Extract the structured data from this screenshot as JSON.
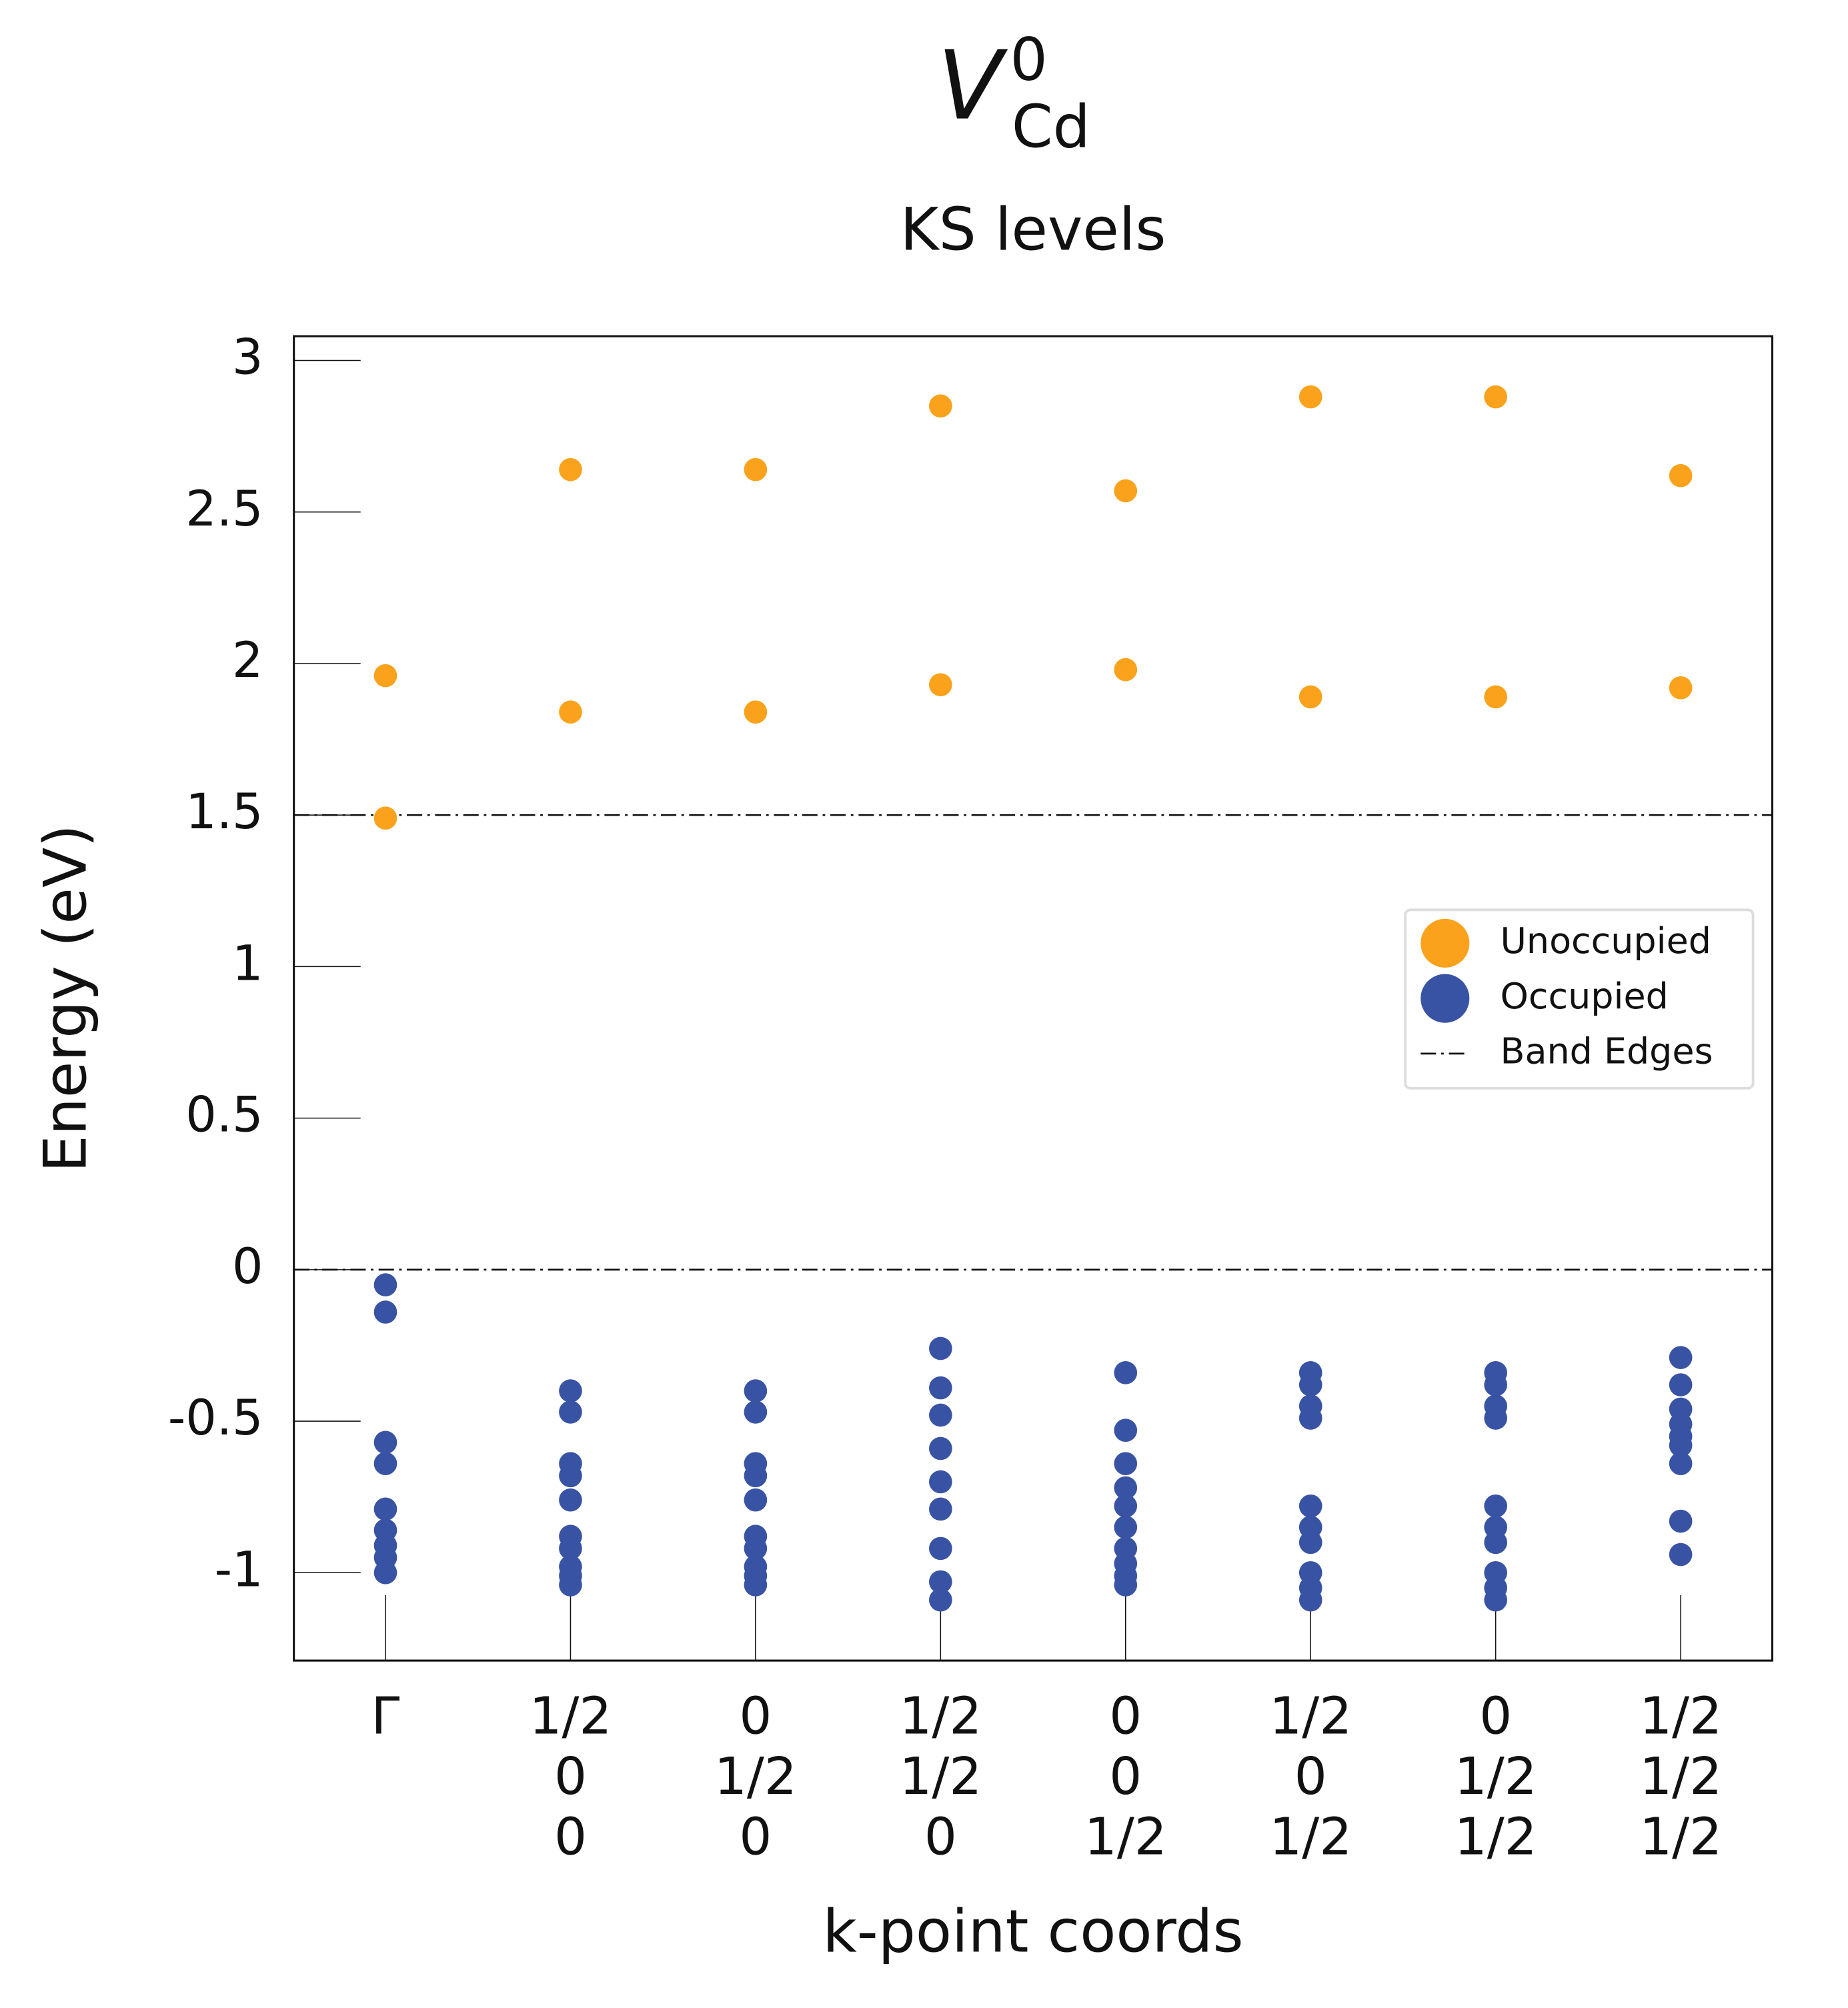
{
  "chart_data": {
    "type": "scatter",
    "title": {
      "main": "V",
      "superscript": "0",
      "subscript": "Cd"
    },
    "subtitle": "KS levels",
    "ylabel": "Energy (eV)",
    "xlabel": "k-point coords",
    "categories": [
      [
        "Γ"
      ],
      [
        "1/2",
        "0",
        "0"
      ],
      [
        "0",
        "1/2",
        "0"
      ],
      [
        "1/2",
        "1/2",
        "0"
      ],
      [
        "0",
        "0",
        "1/2"
      ],
      [
        "1/2",
        "0",
        "1/2"
      ],
      [
        "0",
        "1/2",
        "1/2"
      ],
      [
        "1/2",
        "1/2",
        "1/2"
      ]
    ],
    "series": [
      {
        "name": "Unoccupied",
        "color": "#faa21b",
        "values": [
          [
            1.96,
            1.49
          ],
          [
            2.64,
            1.84
          ],
          [
            2.64,
            1.84
          ],
          [
            2.85,
            1.93
          ],
          [
            2.57,
            1.98
          ],
          [
            2.88,
            1.89
          ],
          [
            2.88,
            1.89
          ],
          [
            2.62,
            1.92
          ]
        ]
      },
      {
        "name": "Occupied",
        "color": "#3953a4",
        "values": [
          [
            -0.05,
            -0.14,
            -0.57,
            -0.64,
            -0.79,
            -0.86,
            -0.91,
            -0.95,
            -1.0
          ],
          [
            -0.4,
            -0.47,
            -0.64,
            -0.68,
            -0.76,
            -0.88,
            -0.92,
            -0.98,
            -1.01,
            -1.04
          ],
          [
            -0.4,
            -0.47,
            -0.64,
            -0.68,
            -0.76,
            -0.88,
            -0.92,
            -0.98,
            -1.01,
            -1.04
          ],
          [
            -0.26,
            -0.39,
            -0.48,
            -0.59,
            -0.7,
            -0.79,
            -0.92,
            -1.03,
            -1.09
          ],
          [
            -0.34,
            -0.53,
            -0.64,
            -0.72,
            -0.78,
            -0.85,
            -0.92,
            -0.97,
            -1.01,
            -1.04
          ],
          [
            -0.34,
            -0.38,
            -0.45,
            -0.49,
            -0.78,
            -0.85,
            -0.9,
            -1.0,
            -1.05,
            -1.09
          ],
          [
            -0.34,
            -0.38,
            -0.45,
            -0.49,
            -0.78,
            -0.85,
            -0.9,
            -1.0,
            -1.05,
            -1.09
          ],
          [
            -0.29,
            -0.38,
            -0.46,
            -0.51,
            -0.55,
            -0.58,
            -0.64,
            -0.83,
            -0.94
          ]
        ]
      }
    ],
    "band_edges": [
      0,
      1.5
    ],
    "band_edges_label": "Band Edges",
    "ylim": [
      -1.29,
      3.08
    ],
    "yticks": [
      -1,
      -0.5,
      0,
      0.5,
      1,
      1.5,
      2,
      2.5,
      3
    ],
    "legend": "center right"
  }
}
